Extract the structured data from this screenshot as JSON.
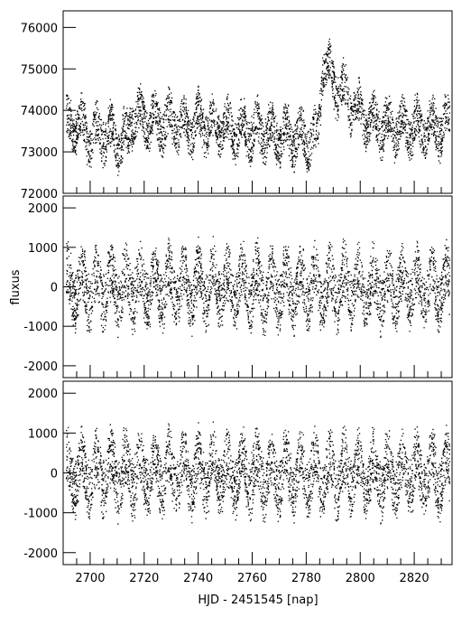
{
  "chart_data": {
    "type": "scatter",
    "xlabel": "HJD - 2451545 [nap]",
    "ylabel": "fluxus",
    "xlim": [
      2690,
      2834
    ],
    "xticks": [
      2700,
      2720,
      2740,
      2760,
      2780,
      2800,
      2820
    ],
    "panels": [
      {
        "ylim": [
          72000,
          76400
        ],
        "yticks": [
          72000,
          73000,
          74000,
          75000,
          76000
        ],
        "series": [
          {
            "x": [
              2691,
              2695,
              2700,
              2705,
              2710,
              2714,
              2715,
              2720,
              2725,
              2730,
              2735,
              2740,
              2745,
              2750,
              2755,
              2760,
              2765,
              2770,
              2775,
              2780,
              2784,
              2786,
              2790,
              2795,
              2800,
              2805,
              2810,
              2815,
              2820,
              2825,
              2830,
              2833
            ],
            "y": [
              73600,
              73700,
              73400,
              73500,
              73300,
              73300,
              73900,
              73800,
              73700,
              73700,
              73600,
              73700,
              73600,
              73600,
              73500,
              73500,
              73500,
              73400,
              73400,
              73300,
              73300,
              75300,
              74700,
              74300,
              73900,
              73700,
              73600,
              73600,
              73600,
              73600,
              73600,
              73700
            ],
            "amplitude": 600
          }
        ]
      },
      {
        "ylim": [
          -2300,
          2300
        ],
        "yticks": [
          -2000,
          -1000,
          0,
          1000,
          2000
        ],
        "series": [
          {
            "x": [
              2691,
              2700,
              2710,
              2720,
              2730,
              2740,
              2750,
              2760,
              2770,
              2780,
              2785,
              2790,
              2800,
              2810,
              2820,
              2833
            ],
            "y": [
              0,
              0,
              0,
              0,
              0,
              0,
              0,
              0,
              0,
              0,
              0,
              0,
              0,
              0,
              0,
              0
            ],
            "amplitude": 850
          }
        ]
      },
      {
        "ylim": [
          -2300,
          2300
        ],
        "yticks": [
          -2000,
          -1000,
          0,
          1000,
          2000
        ],
        "series": [
          {
            "x": [
              2691,
              2700,
              2710,
              2720,
              2730,
              2740,
              2750,
              2760,
              2770,
              2780,
              2790,
              2800,
              2810,
              2820,
              2833
            ],
            "y": [
              0,
              0,
              0,
              0,
              0,
              0,
              0,
              0,
              0,
              0,
              0,
              0,
              0,
              0,
              0
            ],
            "amplitude": 850
          }
        ]
      }
    ],
    "grid": false
  }
}
